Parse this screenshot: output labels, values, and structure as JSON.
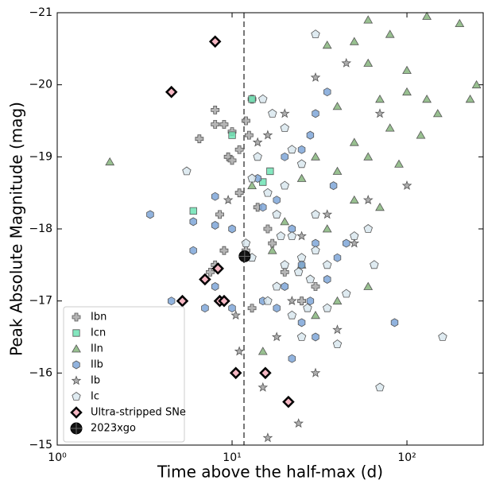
{
  "chart_data": {
    "type": "scatter",
    "x_label": "Time above the half-max (d)",
    "y_label": "Peak Absolute Magnitude (mag)",
    "x_log": true,
    "y_inverted": true,
    "xlim": [
      1,
      273
    ],
    "ylim": [
      -21,
      -15
    ],
    "xticks": [
      {
        "value": 1,
        "label": "10⁰"
      },
      {
        "value": 10,
        "label": "10¹"
      },
      {
        "value": 100,
        "label": "10²"
      }
    ],
    "yticks": [
      {
        "value": -21,
        "label": "−21"
      },
      {
        "value": -20,
        "label": "−20"
      },
      {
        "value": -19,
        "label": "−19"
      },
      {
        "value": -18,
        "label": "−18"
      },
      {
        "value": -17,
        "label": "−17"
      },
      {
        "value": -16,
        "label": "−16"
      },
      {
        "value": -15,
        "label": "−15"
      }
    ],
    "vline": 11.7,
    "legend": "lower left",
    "series": [
      {
        "name": "Ibn",
        "marker": "plus",
        "color": "#a8a8a8",
        "x": [
          8,
          8,
          9,
          10,
          9.5,
          10,
          11,
          6.5,
          12,
          13,
          12.5,
          8.5,
          11,
          14,
          16,
          12,
          8,
          9,
          17,
          20,
          25,
          7.5,
          13,
          30
        ],
        "values": [
          -19.65,
          -19.45,
          -19.45,
          -19.35,
          -19.0,
          -18.95,
          -19.1,
          -19.25,
          -19.5,
          -19.8,
          -19.3,
          -18.2,
          -18.5,
          -18.3,
          -18.0,
          -17.7,
          -17.5,
          -17.7,
          -17.8,
          -17.4,
          -17.0,
          -17.4,
          -16.9,
          -17.2
        ]
      },
      {
        "name": "Icn",
        "marker": "square",
        "color": "#6fe3b4",
        "x": [
          10,
          13,
          6,
          15,
          16.5
        ],
        "values": [
          -19.3,
          -19.8,
          -18.25,
          -18.65,
          -18.8
        ]
      },
      {
        "name": "IIn",
        "marker": "triangle",
        "color": "#86b57c",
        "x": [
          2,
          60,
          130,
          200,
          80,
          50,
          35,
          60,
          100,
          250,
          230,
          130,
          100,
          70,
          40,
          150,
          80,
          120,
          50,
          60,
          30,
          90,
          40,
          25,
          50,
          70,
          20,
          35,
          17,
          25,
          60,
          15,
          40,
          30,
          13
        ],
        "values": [
          -18.93,
          -20.9,
          -20.95,
          -20.85,
          -20.7,
          -20.6,
          -20.55,
          -20.3,
          -20.2,
          -20.0,
          -19.8,
          -19.8,
          -19.9,
          -19.8,
          -19.7,
          -19.6,
          -19.4,
          -19.3,
          -19.2,
          -19.0,
          -19.0,
          -18.9,
          -18.8,
          -18.7,
          -18.4,
          -18.3,
          -18.1,
          -18.0,
          -17.7,
          -17.5,
          -17.2,
          -16.3,
          -17.0,
          -16.8,
          -18.6
        ]
      },
      {
        "name": "IIb",
        "marker": "hexagon",
        "color": "#7ea6d8",
        "x": [
          3.4,
          4.5,
          6,
          6,
          8,
          8,
          10,
          8,
          7,
          10,
          14,
          15,
          18,
          20,
          25,
          28,
          30,
          35,
          22,
          25,
          30,
          35,
          40,
          20,
          18,
          25,
          30,
          22,
          85,
          45,
          15,
          28,
          38
        ],
        "values": [
          -18.2,
          -17.0,
          -18.1,
          -17.7,
          -18.45,
          -18.05,
          -18.0,
          -17.2,
          -16.9,
          -16.9,
          -18.7,
          -18.3,
          -18.4,
          -19.0,
          -19.1,
          -19.3,
          -19.6,
          -19.9,
          -18.0,
          -17.5,
          -17.8,
          -17.3,
          -17.6,
          -17.2,
          -16.9,
          -16.7,
          -16.5,
          -16.2,
          -16.7,
          -17.8,
          -17.0,
          -17.0,
          -18.6
        ]
      },
      {
        "name": "Ib",
        "marker": "star",
        "color": "#a0a0a0",
        "x": [
          9.5,
          10.5,
          11,
          14,
          16,
          20,
          30,
          45,
          70,
          100,
          35,
          50,
          25,
          22,
          15,
          16,
          24,
          18,
          40,
          60,
          30
        ],
        "values": [
          -18.4,
          -16.8,
          -16.3,
          -19.2,
          -19.3,
          -19.6,
          -20.1,
          -20.3,
          -19.6,
          -18.6,
          -18.2,
          -17.8,
          -17.9,
          -17.0,
          -15.8,
          -15.1,
          -15.3,
          -16.5,
          -16.6,
          -18.4,
          -16.0
        ]
      },
      {
        "name": "Ic",
        "marker": "pentagon",
        "color": "#d9e7ef",
        "x": [
          5.5,
          12,
          13,
          13,
          14,
          15,
          17,
          20,
          30,
          22,
          25,
          20,
          16,
          18,
          22,
          25,
          28,
          30,
          20,
          18,
          16,
          22,
          25,
          35,
          40,
          50,
          60,
          65,
          160,
          70,
          30,
          35,
          45,
          24,
          19,
          27
        ],
        "values": [
          -18.8,
          -17.8,
          -17.6,
          -18.7,
          -19.0,
          -19.8,
          -19.6,
          -19.4,
          -20.7,
          -19.1,
          -18.9,
          -18.6,
          -18.5,
          -18.2,
          -17.9,
          -17.6,
          -17.3,
          -17.7,
          -17.5,
          -17.2,
          -17.0,
          -16.8,
          -16.5,
          -16.9,
          -16.4,
          -17.9,
          -18.0,
          -17.5,
          -16.5,
          -15.8,
          -18.2,
          -17.5,
          -17.1,
          -17.4,
          -17.9,
          -16.9
        ]
      },
      {
        "name": "Ultra-stripped SNe",
        "marker": "diamond",
        "color": "#f6b8c4",
        "x": [
          8,
          4.5,
          7,
          8.3,
          5.2,
          8.5,
          9,
          10.5,
          15.5,
          21
        ],
        "values": [
          -20.6,
          -19.9,
          -17.3,
          -17.45,
          -17.0,
          -17.0,
          -17.0,
          -16.0,
          -16.0,
          -15.6
        ]
      },
      {
        "name": "2023xgo",
        "marker": "circle",
        "color": "#111111",
        "x": [
          11.8
        ],
        "values": [
          -17.62
        ]
      }
    ]
  }
}
